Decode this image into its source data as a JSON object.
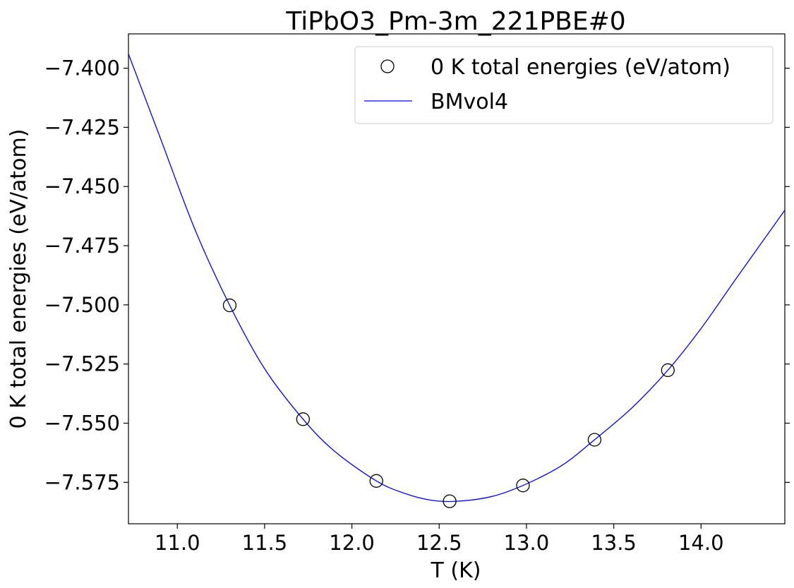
{
  "chart_data": {
    "type": "scatter",
    "title": "TiPbO3_Pm-3m_221PBE#0",
    "xlabel": "T (K)",
    "ylabel": "0 K total energies (eV/atom)",
    "xlim": [
      10.72,
      14.48
    ],
    "ylim": [
      -7.5925,
      -7.3855
    ],
    "xticks": [
      11.0,
      11.5,
      12.0,
      12.5,
      13.0,
      13.5,
      14.0
    ],
    "xtick_labels": [
      "11.0",
      "11.5",
      "12.0",
      "12.5",
      "13.0",
      "13.5",
      "14.0"
    ],
    "yticks": [
      -7.4,
      -7.425,
      -7.45,
      -7.475,
      -7.5,
      -7.525,
      -7.55,
      -7.575
    ],
    "ytick_labels": [
      "−7.400",
      "−7.425",
      "−7.450",
      "−7.475",
      "−7.500",
      "−7.525",
      "−7.550",
      "−7.575"
    ],
    "grid": false,
    "legend_position": "top-right",
    "series": [
      {
        "name": "0 K total energies (eV/atom)",
        "kind": "scatter",
        "marker": "open-circle",
        "color": "#000000",
        "x": [
          11.3,
          11.72,
          12.14,
          12.56,
          12.98,
          13.39,
          13.81
        ],
        "y": [
          -7.5002,
          -7.5483,
          -7.5744,
          -7.583,
          -7.5763,
          -7.557,
          -7.5276
        ]
      },
      {
        "name": "BMvol4",
        "kind": "line",
        "color": "#0000ff",
        "x": [
          10.72,
          10.9,
          11.1,
          11.3,
          11.5,
          11.72,
          11.9,
          12.14,
          12.3,
          12.45,
          12.6,
          12.8,
          12.98,
          13.2,
          13.39,
          13.6,
          13.81,
          14.0,
          14.2,
          14.48
        ],
        "y": [
          -7.394,
          -7.429,
          -7.468,
          -7.5002,
          -7.527,
          -7.5483,
          -7.5618,
          -7.5744,
          -7.5796,
          -7.5825,
          -7.583,
          -7.581,
          -7.5763,
          -7.568,
          -7.557,
          -7.5438,
          -7.5276,
          -7.51,
          -7.489,
          -7.46
        ]
      }
    ]
  }
}
